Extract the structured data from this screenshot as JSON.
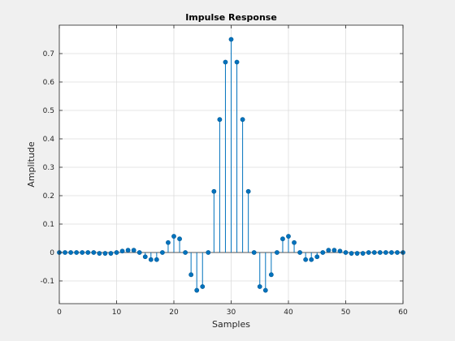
{
  "chart_data": {
    "type": "stem",
    "title": "Impulse Response",
    "xlabel": "Samples",
    "ylabel": "Amplitude",
    "xlim": [
      0,
      60
    ],
    "ylim": [
      -0.18,
      0.8
    ],
    "xticks": [
      0,
      10,
      20,
      30,
      40,
      50,
      60
    ],
    "yticks": [
      -0.1,
      0,
      0.1,
      0.2,
      0.3,
      0.4,
      0.5,
      0.6,
      0.7
    ],
    "grid": true,
    "colors": {
      "stem": "#0072bd",
      "marker": "#0072bd",
      "baseline": "#262626"
    },
    "x": [
      0,
      1,
      2,
      3,
      4,
      5,
      6,
      7,
      8,
      9,
      10,
      11,
      12,
      13,
      14,
      15,
      16,
      17,
      18,
      19,
      20,
      21,
      22,
      23,
      24,
      25,
      26,
      27,
      28,
      29,
      30,
      31,
      32,
      33,
      34,
      35,
      36,
      37,
      38,
      39,
      40,
      41,
      42,
      43,
      44,
      45,
      46,
      47,
      48,
      49,
      50,
      51,
      52,
      53,
      54,
      55,
      56,
      57,
      58,
      59,
      60
    ],
    "values": [
      0,
      0,
      0,
      0,
      0,
      0,
      0,
      -0.003,
      -0.003,
      -0.003,
      0,
      0.005,
      0.008,
      0.008,
      0,
      -0.015,
      -0.025,
      -0.025,
      0,
      0.035,
      0.057,
      0.048,
      0,
      -0.078,
      -0.133,
      -0.12,
      0,
      0.215,
      0.468,
      0.67,
      0.75,
      0.67,
      0.468,
      0.215,
      0,
      -0.12,
      -0.133,
      -0.078,
      0,
      0.048,
      0.057,
      0.035,
      0,
      -0.025,
      -0.025,
      -0.015,
      0,
      0.008,
      0.008,
      0.005,
      0,
      -0.003,
      -0.003,
      -0.003,
      0,
      0,
      0,
      0,
      0,
      0,
      0
    ]
  }
}
